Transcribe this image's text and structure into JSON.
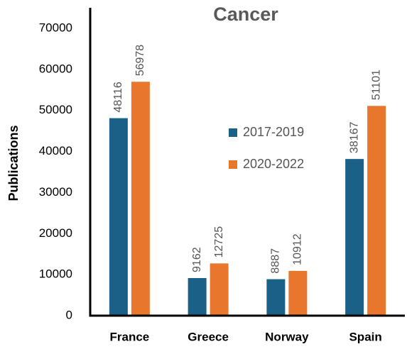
{
  "chart_data": {
    "type": "bar",
    "title": "Cancer",
    "y_label": "Publications",
    "categories": [
      "France",
      "Greece",
      "Norway",
      "Spain"
    ],
    "series": [
      {
        "name": "2017-2019",
        "color": "#1b6087",
        "values": [
          48116,
          9162,
          8887,
          38167
        ]
      },
      {
        "name": "2020-2022",
        "color": "#e8762d",
        "values": [
          56978,
          12725,
          10912,
          51101
        ]
      }
    ],
    "ylim": [
      0,
      75000
    ],
    "yticks": [
      0,
      10000,
      20000,
      30000,
      40000,
      50000,
      60000,
      70000
    ],
    "grid": false
  }
}
